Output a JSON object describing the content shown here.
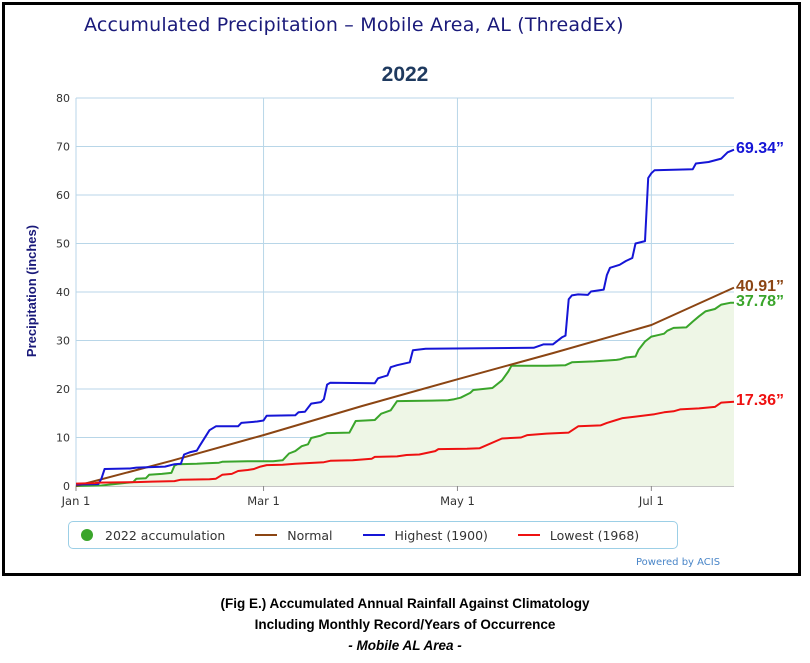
{
  "header": {
    "title": "Accumulated Precipitation – Mobile Area, AL (ThreadEx)"
  },
  "colors": {
    "green": "#3aa52b",
    "brown": "#8b4513",
    "blue": "#1515d6",
    "red": "#ee1111",
    "fill": "#eef6e6",
    "grid": "#b8d6e8"
  },
  "chart_data": {
    "type": "line",
    "title": "2022",
    "ylabel": "Precipitation (inches)",
    "xlabel": "",
    "ylim": [
      0,
      80
    ],
    "yticks": [
      0,
      10,
      20,
      30,
      40,
      50,
      60,
      70,
      80
    ],
    "xlim": [
      0,
      207
    ],
    "xticks": [
      {
        "x": 0,
        "label": "Jan 1"
      },
      {
        "x": 59,
        "label": "Mar 1"
      },
      {
        "x": 120,
        "label": "May 1"
      },
      {
        "x": 181,
        "label": "Jul 1"
      }
    ],
    "grid": true,
    "legend_position": "bottom",
    "series": [
      {
        "name": "2022 accumulation",
        "color_key": "green",
        "filled": true,
        "points": [
          [
            0,
            0
          ],
          [
            8,
            0.1
          ],
          [
            12,
            0.4
          ],
          [
            18,
            0.8
          ],
          [
            19,
            1.5
          ],
          [
            22,
            1.6
          ],
          [
            23,
            2.3
          ],
          [
            27,
            2.5
          ],
          [
            30,
            2.7
          ],
          [
            31,
            4.2
          ],
          [
            32,
            4.5
          ],
          [
            38,
            4.6
          ],
          [
            41,
            4.7
          ],
          [
            45,
            4.8
          ],
          [
            46,
            5.0
          ],
          [
            54,
            5.1
          ],
          [
            62,
            5.1
          ],
          [
            65,
            5.3
          ],
          [
            67,
            6.7
          ],
          [
            69,
            7.2
          ],
          [
            71,
            8.2
          ],
          [
            73,
            8.6
          ],
          [
            74,
            9.9
          ],
          [
            77,
            10.4
          ],
          [
            79,
            10.9
          ],
          [
            86,
            11.0
          ],
          [
            88,
            13.4
          ],
          [
            94,
            13.6
          ],
          [
            96,
            14.9
          ],
          [
            99,
            15.6
          ],
          [
            101,
            17.5
          ],
          [
            112,
            17.6
          ],
          [
            117,
            17.7
          ],
          [
            119,
            17.9
          ],
          [
            121,
            18.2
          ],
          [
            124,
            19.2
          ],
          [
            125,
            19.8
          ],
          [
            128,
            20.0
          ],
          [
            131,
            20.2
          ],
          [
            134,
            21.8
          ],
          [
            136,
            23.6
          ],
          [
            137,
            24.8
          ],
          [
            148,
            24.8
          ],
          [
            154,
            24.9
          ],
          [
            156,
            25.5
          ],
          [
            163,
            25.7
          ],
          [
            170,
            26.0
          ],
          [
            171,
            26.1
          ],
          [
            173,
            26.5
          ],
          [
            176,
            26.7
          ],
          [
            177,
            28.1
          ],
          [
            179,
            29.8
          ],
          [
            181,
            30.8
          ],
          [
            183,
            31.1
          ],
          [
            185,
            31.4
          ],
          [
            186,
            32.0
          ],
          [
            188,
            32.6
          ],
          [
            192,
            32.7
          ],
          [
            194,
            33.9
          ],
          [
            196,
            35.0
          ],
          [
            198,
            36.0
          ],
          [
            201,
            36.5
          ],
          [
            203,
            37.4
          ],
          [
            206,
            37.8
          ],
          [
            207,
            37.78
          ]
        ]
      },
      {
        "name": "Normal",
        "color_key": "brown",
        "filled": false,
        "points": [
          [
            0,
            0
          ],
          [
            30,
            5.2
          ],
          [
            59,
            10.5
          ],
          [
            90,
            16.5
          ],
          [
            120,
            22.0
          ],
          [
            150,
            27.4
          ],
          [
            181,
            33.2
          ],
          [
            207,
            40.91
          ]
        ]
      },
      {
        "name": "Highest (1900)",
        "color_key": "blue",
        "filled": false,
        "points": [
          [
            0,
            0.3
          ],
          [
            7,
            0.4
          ],
          [
            8,
            1.5
          ],
          [
            9,
            3.5
          ],
          [
            17,
            3.6
          ],
          [
            19,
            3.8
          ],
          [
            28,
            4.0
          ],
          [
            31,
            4.5
          ],
          [
            33,
            4.6
          ],
          [
            34,
            6.5
          ],
          [
            36,
            7.0
          ],
          [
            38,
            7.3
          ],
          [
            39,
            8.4
          ],
          [
            42,
            11.5
          ],
          [
            44,
            12.3
          ],
          [
            51,
            12.3
          ],
          [
            52,
            13.0
          ],
          [
            57,
            13.3
          ],
          [
            59,
            13.5
          ],
          [
            60,
            14.5
          ],
          [
            69,
            14.6
          ],
          [
            70,
            15.2
          ],
          [
            72,
            15.3
          ],
          [
            74,
            17.0
          ],
          [
            77,
            17.3
          ],
          [
            78,
            17.9
          ],
          [
            79,
            20.9
          ],
          [
            80,
            21.3
          ],
          [
            94,
            21.2
          ],
          [
            95,
            22.2
          ],
          [
            98,
            22.8
          ],
          [
            99,
            24.5
          ],
          [
            101,
            24.9
          ],
          [
            105,
            25.5
          ],
          [
            106,
            28.0
          ],
          [
            110,
            28.3
          ],
          [
            144,
            28.5
          ],
          [
            147,
            29.2
          ],
          [
            150,
            29.2
          ],
          [
            153,
            30.7
          ],
          [
            154,
            31.0
          ],
          [
            155,
            38.5
          ],
          [
            156,
            39.3
          ],
          [
            158,
            39.5
          ],
          [
            161,
            39.4
          ],
          [
            162,
            40.1
          ],
          [
            166,
            40.5
          ],
          [
            167,
            43.5
          ],
          [
            168,
            45.0
          ],
          [
            171,
            45.6
          ],
          [
            173,
            46.4
          ],
          [
            175,
            47.0
          ],
          [
            176,
            50.0
          ],
          [
            179,
            50.5
          ],
          [
            180,
            63.5
          ],
          [
            181,
            64.5
          ],
          [
            182,
            65.1
          ],
          [
            188,
            65.2
          ],
          [
            194,
            65.3
          ],
          [
            195,
            66.5
          ],
          [
            199,
            66.8
          ],
          [
            203,
            67.5
          ],
          [
            205,
            68.8
          ],
          [
            207,
            69.34
          ]
        ]
      },
      {
        "name": "Lowest (1968)",
        "color_key": "red",
        "filled": false,
        "points": [
          [
            0,
            0.5
          ],
          [
            6,
            0.6
          ],
          [
            7,
            0.7
          ],
          [
            19,
            0.8
          ],
          [
            24,
            0.9
          ],
          [
            31,
            1.0
          ],
          [
            33,
            1.3
          ],
          [
            42,
            1.4
          ],
          [
            44,
            1.5
          ],
          [
            46,
            2.3
          ],
          [
            49,
            2.5
          ],
          [
            51,
            3.1
          ],
          [
            54,
            3.3
          ],
          [
            56,
            3.5
          ],
          [
            58,
            4.0
          ],
          [
            60,
            4.3
          ],
          [
            65,
            4.4
          ],
          [
            69,
            4.6
          ],
          [
            72,
            4.7
          ],
          [
            78,
            4.9
          ],
          [
            80,
            5.2
          ],
          [
            87,
            5.3
          ],
          [
            93,
            5.6
          ],
          [
            94,
            6.0
          ],
          [
            101,
            6.1
          ],
          [
            104,
            6.4
          ],
          [
            108,
            6.5
          ],
          [
            113,
            7.2
          ],
          [
            114,
            7.6
          ],
          [
            123,
            7.7
          ],
          [
            127,
            7.8
          ],
          [
            134,
            9.8
          ],
          [
            140,
            10.0
          ],
          [
            142,
            10.5
          ],
          [
            148,
            10.8
          ],
          [
            155,
            11.0
          ],
          [
            158,
            12.3
          ],
          [
            165,
            12.5
          ],
          [
            167,
            13.0
          ],
          [
            170,
            13.6
          ],
          [
            172,
            14.0
          ],
          [
            176,
            14.3
          ],
          [
            182,
            14.8
          ],
          [
            185,
            15.2
          ],
          [
            188,
            15.4
          ],
          [
            190,
            15.8
          ],
          [
            196,
            16.0
          ],
          [
            201,
            16.3
          ],
          [
            203,
            17.2
          ],
          [
            207,
            17.36
          ]
        ]
      }
    ],
    "end_labels": [
      {
        "text": "69.34”",
        "value": 69.34,
        "color_key": "blue"
      },
      {
        "text": "40.91”",
        "value": 40.91,
        "color_key": "brown"
      },
      {
        "text": "37.78”",
        "value": 37.78,
        "color_key": "green"
      },
      {
        "text": "17.36”",
        "value": 17.36,
        "color_key": "red"
      }
    ]
  },
  "legend": {
    "items": [
      {
        "label": "2022 accumulation",
        "marker": "dot",
        "color_key": "green"
      },
      {
        "label": "Normal",
        "marker": "line",
        "color_key": "brown"
      },
      {
        "label": "Highest (1900)",
        "marker": "line",
        "color_key": "blue"
      },
      {
        "label": "Lowest (1968)",
        "marker": "line",
        "color_key": "red"
      }
    ]
  },
  "credit": "Powered by ACIS",
  "caption": {
    "line1": "(Fig E.) Accumulated Annual Rainfall Against  Climatology",
    "line2": "Including Monthly Record/Years of Occurrence",
    "line3": "- Mobile AL Area -"
  }
}
